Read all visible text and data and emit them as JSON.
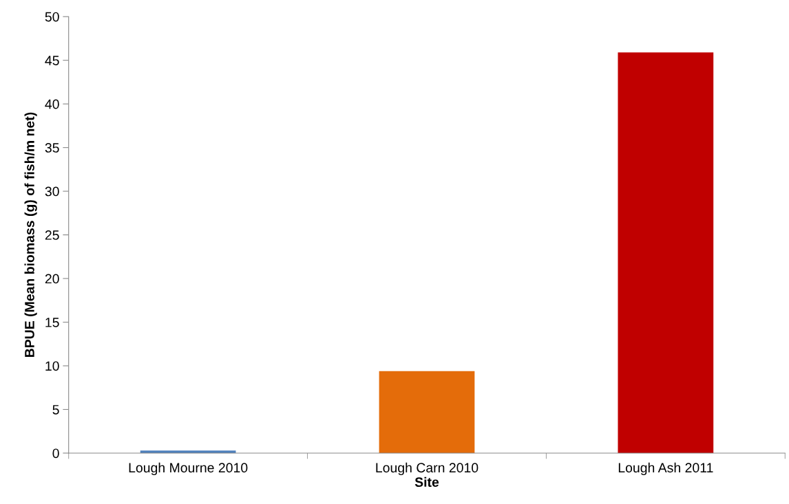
{
  "chart_data": {
    "type": "bar",
    "xlabel": "Site",
    "ylabel": "BPUE (Mean biomass (g) of fish/m net)",
    "categories": [
      "Lough Mourne 2010",
      "Lough Carn 2010",
      "Lough Ash 2011"
    ],
    "values": [
      0.3,
      9.4,
      45.9
    ],
    "colors": [
      "#4f81bd",
      "#e46c0a",
      "#c00000"
    ],
    "ylim": [
      0,
      50
    ],
    "yticks": [
      0,
      5,
      10,
      15,
      20,
      25,
      30,
      35,
      40,
      45,
      50
    ],
    "grid": false
  }
}
